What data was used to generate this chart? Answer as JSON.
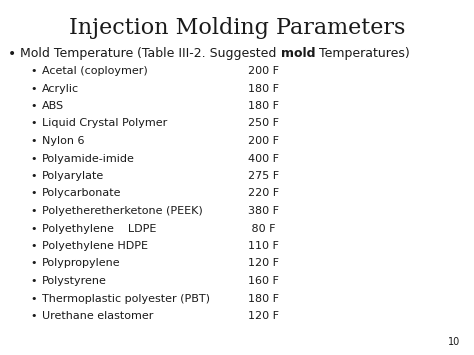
{
  "title": "Injection Molding Parameters",
  "background_color": "#ffffff",
  "title_fontsize": 16,
  "bullet1_fontsize": 9,
  "sub_fontsize": 8,
  "sub_items": [
    [
      "Acetal (coploymer)",
      "200 F"
    ],
    [
      "Acrylic",
      "180 F"
    ],
    [
      "ABS",
      "180 F"
    ],
    [
      "Liquid Crystal Polymer",
      "250 F"
    ],
    [
      "Nylon 6",
      "200 F"
    ],
    [
      "Polyamide-imide",
      "400 F"
    ],
    [
      "Polyarylate",
      "275 F"
    ],
    [
      "Polycarbonate",
      "220 F"
    ],
    [
      "Polyetheretherketone (PEEK)",
      "380 F"
    ],
    [
      "Polyethylene    LDPE",
      " 80 F"
    ],
    [
      "Polyethylene HDPE",
      "110 F"
    ],
    [
      "Polypropylene",
      "120 F"
    ],
    [
      "Polystyrene",
      "160 F"
    ],
    [
      "Thermoplastic polyester (PBT)",
      "180 F"
    ],
    [
      "Urethane elastomer",
      "120 F"
    ]
  ],
  "page_number": "10",
  "text_color": "#1a1a1a"
}
